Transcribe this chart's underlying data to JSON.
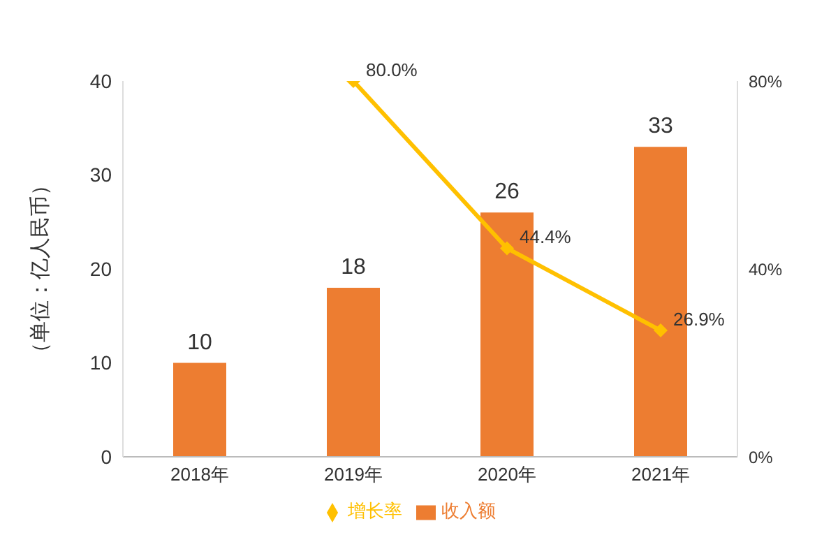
{
  "chart_data": {
    "type": "bar",
    "categories": [
      "2018年",
      "2019年",
      "2020年",
      "2021年"
    ],
    "ylabel": "（单位：亿人民币）",
    "ylim": [
      0,
      40
    ],
    "yticks": [
      0,
      10,
      20,
      30,
      40
    ],
    "y2lim": [
      0,
      80
    ],
    "y2ticks": [
      {
        "value": 0,
        "label": "0%"
      },
      {
        "value": 40,
        "label": "40%"
      },
      {
        "value": 80,
        "label": "80%"
      }
    ],
    "series": [
      {
        "name": "收入额",
        "color": "#ed7d31",
        "values": [
          10,
          18,
          26,
          33
        ],
        "value_labels": [
          "10",
          "18",
          "26",
          "33"
        ]
      },
      {
        "name": "增长率",
        "type": "line",
        "axis": "y2",
        "color": "#ffc000",
        "values": [
          null,
          80.0,
          44.4,
          26.9
        ],
        "value_labels": [
          null,
          "80.0%",
          "44.4%",
          "26.9%"
        ],
        "marker": "diamond"
      }
    ],
    "legend": "bottom"
  }
}
